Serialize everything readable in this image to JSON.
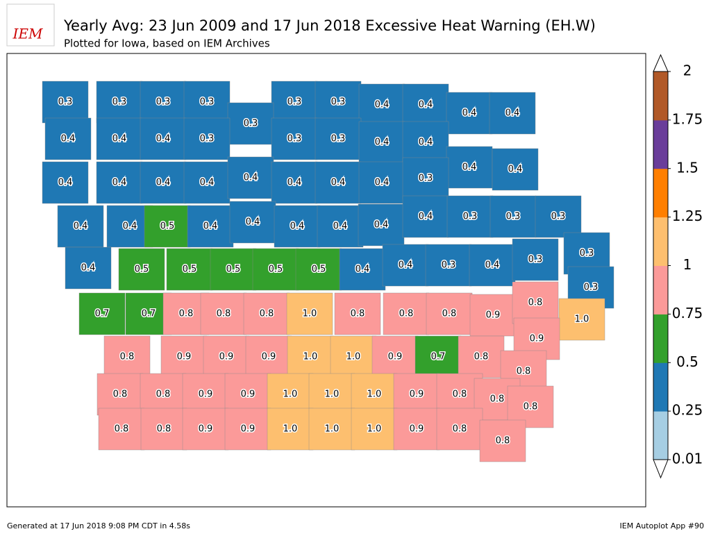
{
  "header": {
    "logo": "IEM",
    "title": "Yearly Avg: 23 Jun 2009 and 17 Jun 2018 Excessive Heat Warning (EH.W)",
    "subtitle": "Plotted for Iowa, based on IEM Archives"
  },
  "footer": {
    "left": "Generated at 17 Jun 2018 9:08 PM CDT in 4.58s",
    "right": "IEM Autoplot App #90"
  },
  "colorbar": {
    "ticks": [
      0.01,
      0.25,
      0.5,
      0.75,
      1,
      1.25,
      1.5,
      1.75,
      2
    ],
    "colors": [
      "#a6cee3",
      "#1f78b4",
      "#33a02c",
      "#fb9a99",
      "#fdbf6f",
      "#ff7f00",
      "#6a3d9a",
      "#b15928"
    ]
  },
  "counties": {
    "values": [
      0.3,
      0.3,
      0.3,
      0.3,
      0.3,
      0.3,
      0.4,
      0.4,
      0.4,
      0.4,
      0.3,
      0.4,
      0.4,
      0.4,
      0.3,
      0.3,
      0.3,
      0.4,
      0.4,
      0.4,
      0.4,
      0.4,
      0.4,
      0.4,
      0.4,
      0.4,
      0.4,
      0.4,
      0.4,
      0.3,
      0.4,
      0.4,
      0.5,
      0.4,
      0.4,
      0.4,
      0.4,
      0.4,
      0.4,
      0.3,
      0.3,
      0.3,
      0.4,
      0.5,
      0.5,
      0.5,
      0.5,
      0.5,
      0.4,
      0.4,
      0.3,
      0.4,
      0.3,
      0.3,
      0.3,
      0.7,
      0.7,
      0.8,
      0.8,
      0.8,
      1.0,
      0.8,
      0.8,
      0.8,
      0.9,
      0.8,
      1.0,
      0.8,
      0.9,
      0.9,
      0.9,
      1.0,
      1.0,
      0.9,
      0.7,
      0.8,
      0.9,
      0.8,
      0.8,
      0.8,
      0.9,
      0.9,
      1.0,
      1.0,
      1.0,
      0.9,
      0.8,
      0.8,
      0.8,
      0.8,
      0.8,
      0.9,
      0.9,
      1.0,
      1.0,
      1.0,
      0.9,
      0.8,
      0.8
    ],
    "value_labels": [
      "0.3",
      "0.3",
      "0.3",
      "0.3",
      "0.3",
      "0.3",
      "0.4",
      "0.4",
      "0.4",
      "0.4",
      "0.3",
      "0.4",
      "0.4",
      "0.4",
      "0.3",
      "0.3",
      "0.3",
      "0.4",
      "0.4",
      "0.4",
      "0.4",
      "0.4",
      "0.4",
      "0.4",
      "0.4",
      "0.4",
      "0.4",
      "0.4",
      "0.4",
      "0.3",
      "0.4",
      "0.4",
      "0.5",
      "0.4",
      "0.4",
      "0.4",
      "0.4",
      "0.4",
      "0.4",
      "0.3",
      "0.3",
      "0.3",
      "0.4",
      "0.5",
      "0.5",
      "0.5",
      "0.5",
      "0.5",
      "0.4",
      "0.4",
      "0.3",
      "0.4",
      "0.3",
      "0.3",
      "0.3",
      "0.7",
      "0.7",
      "0.8",
      "0.8",
      "0.8",
      "1.0",
      "0.8",
      "0.8",
      "0.8",
      "0.9",
      "0.8",
      "1.0",
      "0.8",
      "0.9",
      "0.9",
      "0.9",
      "1.0",
      "1.0",
      "0.9",
      "0.7",
      "0.8",
      "0.9",
      "0.8",
      "0.8",
      "0.8",
      "0.9",
      "0.9",
      "1.0",
      "1.0",
      "1.0",
      "0.9",
      "0.8",
      "0.8",
      "0.8",
      "0.8",
      "0.8",
      "0.9",
      "0.9",
      "1.0",
      "1.0",
      "1.0",
      "0.9",
      "0.8",
      "0.8"
    ]
  }
}
